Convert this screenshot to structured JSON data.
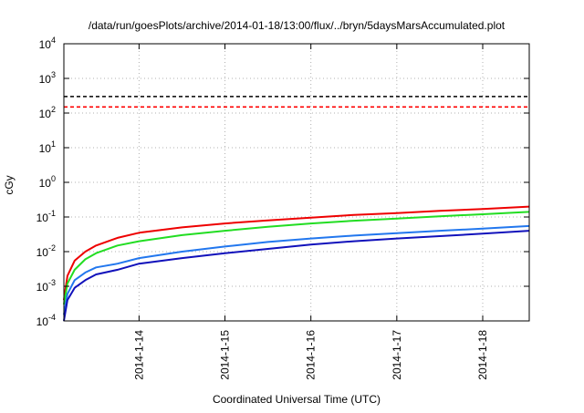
{
  "chart_data": {
    "type": "line",
    "title": "/data/run/goesPlots/archive/2014-01-18/13:00/flux/../bryn/5daysMarsAccumulated.plot",
    "xlabel": "Coordinated Universal Time (UTC)",
    "ylabel": "cGy",
    "yscale": "log",
    "ylim": [
      0.0001,
      10000
    ],
    "xlim": [
      "2014-01-13 03:00",
      "2014-01-18 13:00"
    ],
    "grid": true,
    "legend": "none",
    "x_ticks": [
      {
        "value": "2014-01-14 00:00",
        "label": "2014-1-14"
      },
      {
        "value": "2014-01-15 00:00",
        "label": "2014-1-15"
      },
      {
        "value": "2014-01-16 00:00",
        "label": "2014-1-16"
      },
      {
        "value": "2014-01-17 00:00",
        "label": "2014-1-17"
      },
      {
        "value": "2014-01-18 00:00",
        "label": "2014-1-18"
      }
    ],
    "y_ticks": [
      {
        "value": 0.0001,
        "base": "10",
        "exp": "-4"
      },
      {
        "value": 0.001,
        "base": "10",
        "exp": "-3"
      },
      {
        "value": 0.01,
        "base": "10",
        "exp": "-2"
      },
      {
        "value": 0.1,
        "base": "10",
        "exp": "-1"
      },
      {
        "value": 1,
        "base": "10",
        "exp": "0"
      },
      {
        "value": 10,
        "base": "10",
        "exp": "1"
      },
      {
        "value": 100,
        "base": "10",
        "exp": "2"
      },
      {
        "value": 1000,
        "base": "10",
        "exp": "3"
      },
      {
        "value": 10000,
        "base": "10",
        "exp": "4"
      }
    ],
    "thresholds": [
      {
        "value": 300,
        "color": "#000000",
        "style": "dashed"
      },
      {
        "value": 150,
        "color": "#ff0000",
        "style": "dashed"
      }
    ],
    "series": [
      {
        "color": "#ee0000",
        "x": [
          "2014-01-13 03:00",
          "2014-01-13 04:00",
          "2014-01-13 06:00",
          "2014-01-13 09:00",
          "2014-01-13 12:00",
          "2014-01-13 18:00",
          "2014-01-14 00:00",
          "2014-01-14 12:00",
          "2014-01-15 00:00",
          "2014-01-15 12:00",
          "2014-01-16 00:00",
          "2014-01-16 12:00",
          "2014-01-17 00:00",
          "2014-01-17 12:00",
          "2014-01-18 00:00",
          "2014-01-18 13:00"
        ],
        "y": [
          0.0004,
          0.002,
          0.0055,
          0.01,
          0.015,
          0.025,
          0.035,
          0.05,
          0.065,
          0.08,
          0.095,
          0.115,
          0.13,
          0.15,
          0.17,
          0.2
        ]
      },
      {
        "color": "#22dd22",
        "x": [
          "2014-01-13 03:00",
          "2014-01-13 04:00",
          "2014-01-13 06:00",
          "2014-01-13 09:00",
          "2014-01-13 12:00",
          "2014-01-13 18:00",
          "2014-01-14 00:00",
          "2014-01-14 12:00",
          "2014-01-15 00:00",
          "2014-01-15 12:00",
          "2014-01-16 00:00",
          "2014-01-16 12:00",
          "2014-01-17 00:00",
          "2014-01-17 12:00",
          "2014-01-18 00:00",
          "2014-01-18 13:00"
        ],
        "y": [
          0.0003,
          0.0012,
          0.003,
          0.006,
          0.009,
          0.015,
          0.02,
          0.03,
          0.04,
          0.052,
          0.065,
          0.078,
          0.09,
          0.105,
          0.12,
          0.14
        ]
      },
      {
        "color": "#2277ee",
        "x": [
          "2014-01-13 03:00",
          "2014-01-13 04:00",
          "2014-01-13 06:00",
          "2014-01-13 09:00",
          "2014-01-13 12:00",
          "2014-01-13 18:00",
          "2014-01-14 00:00",
          "2014-01-14 12:00",
          "2014-01-15 00:00",
          "2014-01-15 12:00",
          "2014-01-16 00:00",
          "2014-01-16 12:00",
          "2014-01-17 00:00",
          "2014-01-17 12:00",
          "2014-01-18 00:00",
          "2014-01-18 13:00"
        ],
        "y": [
          0.00015,
          0.0006,
          0.0015,
          0.0025,
          0.0035,
          0.0045,
          0.0065,
          0.01,
          0.014,
          0.019,
          0.024,
          0.029,
          0.034,
          0.04,
          0.046,
          0.055
        ]
      },
      {
        "color": "#1111bb",
        "x": [
          "2014-01-13 03:00",
          "2014-01-13 04:00",
          "2014-01-13 06:00",
          "2014-01-13 09:00",
          "2014-01-13 12:00",
          "2014-01-13 18:00",
          "2014-01-14 00:00",
          "2014-01-14 12:00",
          "2014-01-15 00:00",
          "2014-01-15 12:00",
          "2014-01-16 00:00",
          "2014-01-16 12:00",
          "2014-01-17 00:00",
          "2014-01-17 12:00",
          "2014-01-18 00:00",
          "2014-01-18 13:00"
        ],
        "y": [
          0.0001,
          0.0004,
          0.0009,
          0.0015,
          0.0022,
          0.003,
          0.0045,
          0.0065,
          0.009,
          0.012,
          0.016,
          0.02,
          0.024,
          0.028,
          0.033,
          0.04
        ]
      }
    ]
  }
}
